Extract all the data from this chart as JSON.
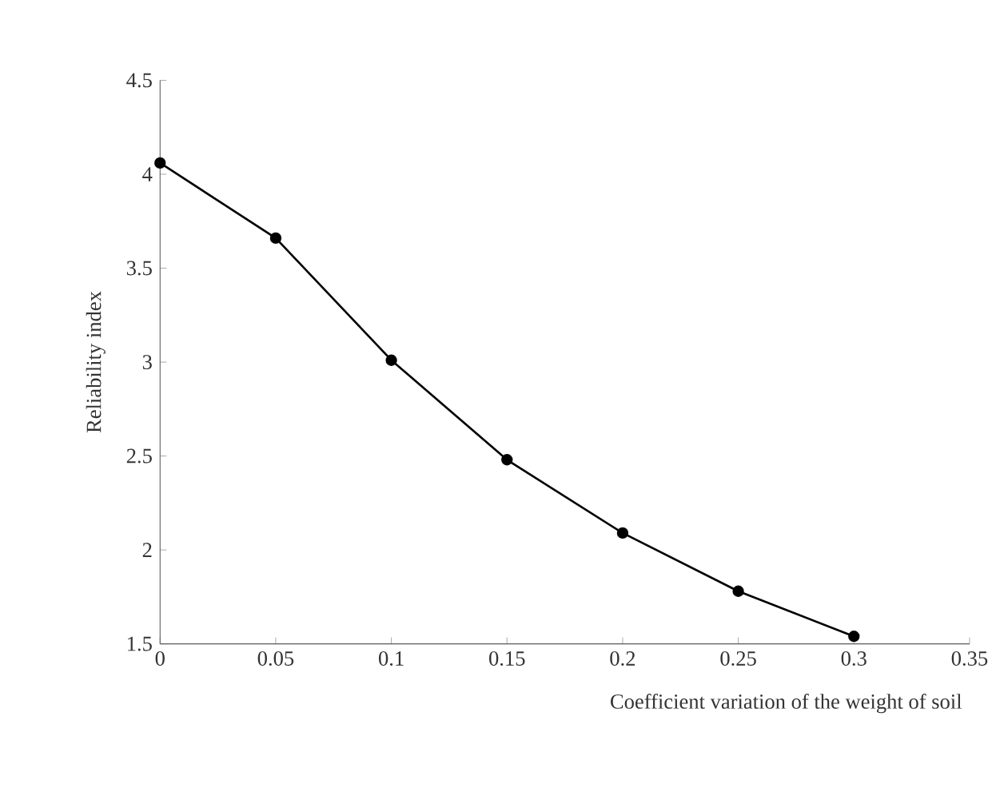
{
  "chart_data": {
    "type": "line",
    "xlabel": "Coefficient variation of the weight of soil",
    "ylabel": "Reliability  index",
    "x": [
      0,
      0.05,
      0.1,
      0.15,
      0.2,
      0.25,
      0.3
    ],
    "series": [
      {
        "color": "#000000",
        "values": [
          4.06,
          3.66,
          3.01,
          2.48,
          2.09,
          1.78,
          1.54
        ]
      }
    ],
    "xlim": [
      0,
      0.35
    ],
    "xticks": [
      0,
      0.05,
      0.1,
      0.15,
      0.2,
      0.25,
      0.3,
      0.35
    ],
    "ylim": [
      1.5,
      4.5
    ],
    "yticks": [
      1.5,
      2,
      2.5,
      3,
      3.5,
      4,
      4.5
    ],
    "marker": "circle",
    "line_style": "solid",
    "grid": false
  }
}
